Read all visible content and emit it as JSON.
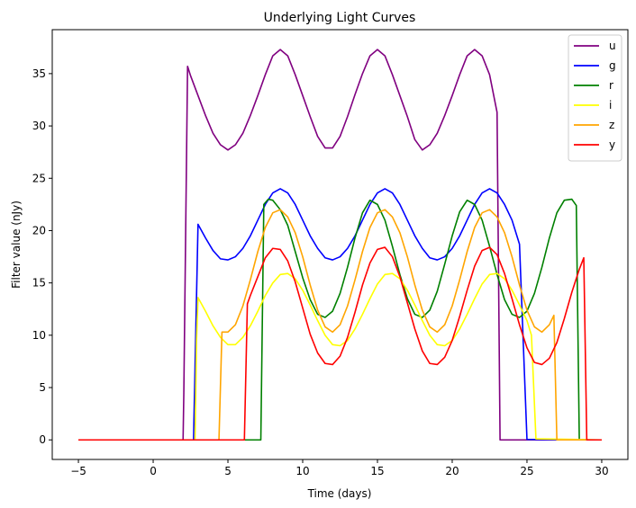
{
  "chart_data": {
    "type": "line",
    "title": "Underlying Light Curves",
    "xlabel": "Time (days)",
    "ylabel": "Filter value (nJy)",
    "xlim": [
      -6.75,
      31.75
    ],
    "ylim": [
      -1.87,
      39.2
    ],
    "xticks": [
      -5,
      0,
      5,
      10,
      15,
      20,
      25,
      30
    ],
    "yticks": [
      0,
      5,
      10,
      15,
      20,
      25,
      30,
      35
    ],
    "grid": false,
    "legend_position": "top-right",
    "series": [
      {
        "name": "u",
        "color": "#800080",
        "points": [
          [
            -5,
            0
          ],
          [
            2.0,
            0
          ],
          [
            2.05,
            4.5
          ],
          [
            2.3,
            35.7
          ],
          [
            2.5,
            34.8
          ],
          [
            3.0,
            32.9
          ],
          [
            3.5,
            31.0
          ],
          [
            4.0,
            29.3
          ],
          [
            4.5,
            28.2
          ],
          [
            5.0,
            27.7
          ],
          [
            5.5,
            28.2
          ],
          [
            6.0,
            29.3
          ],
          [
            6.5,
            31.0
          ],
          [
            7.0,
            32.9
          ],
          [
            7.5,
            34.9
          ],
          [
            8.0,
            36.7
          ],
          [
            8.5,
            37.3
          ],
          [
            9.0,
            36.7
          ],
          [
            9.5,
            34.9
          ],
          [
            10.0,
            32.9
          ],
          [
            10.5,
            30.9
          ],
          [
            11.0,
            29.0
          ],
          [
            11.5,
            27.9
          ],
          [
            12.0,
            27.9
          ],
          [
            12.5,
            29.0
          ],
          [
            13.0,
            30.9
          ],
          [
            13.5,
            33.0
          ],
          [
            14.0,
            35.0
          ],
          [
            14.5,
            36.7
          ],
          [
            15.0,
            37.3
          ],
          [
            15.5,
            36.7
          ],
          [
            16.0,
            34.9
          ],
          [
            16.5,
            32.9
          ],
          [
            17.0,
            30.9
          ],
          [
            17.5,
            28.7
          ],
          [
            18.0,
            27.7
          ],
          [
            18.5,
            28.2
          ],
          [
            19.0,
            29.3
          ],
          [
            19.5,
            31.0
          ],
          [
            20.0,
            32.9
          ],
          [
            20.5,
            34.9
          ],
          [
            21.0,
            36.7
          ],
          [
            21.5,
            37.3
          ],
          [
            22.0,
            36.7
          ],
          [
            22.5,
            34.9
          ],
          [
            23.0,
            31.3
          ],
          [
            23.2,
            0
          ],
          [
            30,
            0
          ]
        ]
      },
      {
        "name": "g",
        "color": "#0000ff",
        "points": [
          [
            -5,
            0
          ],
          [
            2.7,
            0
          ],
          [
            3.0,
            20.6
          ],
          [
            3.5,
            19.3
          ],
          [
            4.0,
            18.1
          ],
          [
            4.5,
            17.3
          ],
          [
            5.0,
            17.2
          ],
          [
            5.5,
            17.5
          ],
          [
            6.0,
            18.3
          ],
          [
            6.5,
            19.5
          ],
          [
            7.0,
            21.0
          ],
          [
            7.5,
            22.5
          ],
          [
            8.0,
            23.6
          ],
          [
            8.5,
            24.0
          ],
          [
            9.0,
            23.6
          ],
          [
            9.5,
            22.5
          ],
          [
            10.0,
            21.0
          ],
          [
            10.5,
            19.5
          ],
          [
            11.0,
            18.3
          ],
          [
            11.5,
            17.4
          ],
          [
            12.0,
            17.2
          ],
          [
            12.5,
            17.5
          ],
          [
            13.0,
            18.3
          ],
          [
            13.5,
            19.5
          ],
          [
            14.0,
            21.0
          ],
          [
            14.5,
            22.5
          ],
          [
            15.0,
            23.6
          ],
          [
            15.5,
            24.0
          ],
          [
            16.0,
            23.6
          ],
          [
            16.5,
            22.5
          ],
          [
            17.0,
            21.0
          ],
          [
            17.5,
            19.5
          ],
          [
            18.0,
            18.3
          ],
          [
            18.5,
            17.4
          ],
          [
            19.0,
            17.2
          ],
          [
            19.5,
            17.5
          ],
          [
            20.0,
            18.3
          ],
          [
            20.5,
            19.5
          ],
          [
            21.0,
            21.0
          ],
          [
            21.5,
            22.5
          ],
          [
            22.0,
            23.6
          ],
          [
            22.5,
            24.0
          ],
          [
            23.0,
            23.6
          ],
          [
            23.5,
            22.5
          ],
          [
            24.0,
            21.0
          ],
          [
            24.5,
            18.7
          ],
          [
            25.0,
            0.05
          ],
          [
            30,
            0
          ]
        ]
      },
      {
        "name": "r",
        "color": "#008000",
        "points": [
          [
            -5,
            0
          ],
          [
            7.2,
            0
          ],
          [
            7.4,
            22.5
          ],
          [
            7.7,
            23.0
          ],
          [
            8.0,
            22.9
          ],
          [
            8.5,
            22.0
          ],
          [
            9.0,
            20.5
          ],
          [
            9.5,
            18.0
          ],
          [
            10.0,
            15.5
          ],
          [
            10.5,
            13.4
          ],
          [
            11.0,
            12.0
          ],
          [
            11.5,
            11.7
          ],
          [
            12.0,
            12.3
          ],
          [
            12.5,
            14.0
          ],
          [
            13.0,
            16.5
          ],
          [
            13.5,
            19.3
          ],
          [
            14.0,
            21.7
          ],
          [
            14.5,
            22.9
          ],
          [
            15.0,
            22.5
          ],
          [
            15.5,
            21.0
          ],
          [
            16.0,
            18.5
          ],
          [
            16.5,
            15.8
          ],
          [
            17.0,
            13.5
          ],
          [
            17.5,
            12.0
          ],
          [
            18.0,
            11.7
          ],
          [
            18.5,
            12.4
          ],
          [
            19.0,
            14.2
          ],
          [
            19.5,
            16.8
          ],
          [
            20.0,
            19.5
          ],
          [
            20.5,
            21.8
          ],
          [
            21.0,
            22.9
          ],
          [
            21.5,
            22.5
          ],
          [
            22.0,
            21.0
          ],
          [
            22.5,
            18.5
          ],
          [
            23.0,
            15.8
          ],
          [
            23.5,
            13.4
          ],
          [
            24.0,
            12.0
          ],
          [
            24.5,
            11.7
          ],
          [
            25.0,
            12.3
          ],
          [
            25.5,
            14.0
          ],
          [
            26.0,
            16.5
          ],
          [
            26.5,
            19.3
          ],
          [
            27.0,
            21.7
          ],
          [
            27.5,
            22.9
          ],
          [
            28.0,
            23.0
          ],
          [
            28.3,
            22.4
          ],
          [
            28.5,
            0
          ],
          [
            30,
            0
          ]
        ]
      },
      {
        "name": "i",
        "color": "#ffff00",
        "points": [
          [
            -5,
            0
          ],
          [
            2.8,
            0
          ],
          [
            2.9,
            9.5
          ],
          [
            3.0,
            13.6
          ],
          [
            3.5,
            12.3
          ],
          [
            4.0,
            10.9
          ],
          [
            4.5,
            9.8
          ],
          [
            5.0,
            9.1
          ],
          [
            5.5,
            9.1
          ],
          [
            6.0,
            9.8
          ],
          [
            6.5,
            10.9
          ],
          [
            7.0,
            12.3
          ],
          [
            7.5,
            13.8
          ],
          [
            8.0,
            15.0
          ],
          [
            8.5,
            15.8
          ],
          [
            9.0,
            15.9
          ],
          [
            9.5,
            15.4
          ],
          [
            10.0,
            14.3
          ],
          [
            10.5,
            12.9
          ],
          [
            11.0,
            11.4
          ],
          [
            11.5,
            10.0
          ],
          [
            12.0,
            9.1
          ],
          [
            12.5,
            9.0
          ],
          [
            13.0,
            9.5
          ],
          [
            13.5,
            10.6
          ],
          [
            14.0,
            12.0
          ],
          [
            14.5,
            13.5
          ],
          [
            15.0,
            14.9
          ],
          [
            15.5,
            15.8
          ],
          [
            16.0,
            15.9
          ],
          [
            16.5,
            15.4
          ],
          [
            17.0,
            14.3
          ],
          [
            17.5,
            12.9
          ],
          [
            18.0,
            11.4
          ],
          [
            18.5,
            10.0
          ],
          [
            19.0,
            9.1
          ],
          [
            19.5,
            9.0
          ],
          [
            20.0,
            9.5
          ],
          [
            20.5,
            10.6
          ],
          [
            21.0,
            12.0
          ],
          [
            21.5,
            13.5
          ],
          [
            22.0,
            14.9
          ],
          [
            22.5,
            15.8
          ],
          [
            23.0,
            15.9
          ],
          [
            23.5,
            15.4
          ],
          [
            24.0,
            14.3
          ],
          [
            24.5,
            12.9
          ],
          [
            25.0,
            11.4
          ],
          [
            25.3,
            10.0
          ],
          [
            25.6,
            0.1
          ],
          [
            30,
            0
          ]
        ]
      },
      {
        "name": "z",
        "color": "#ffa500",
        "points": [
          [
            -5,
            0
          ],
          [
            4.4,
            0
          ],
          [
            4.6,
            10.3
          ],
          [
            5.0,
            10.3
          ],
          [
            5.5,
            11.0
          ],
          [
            6.0,
            12.8
          ],
          [
            6.5,
            15.3
          ],
          [
            7.0,
            18.0
          ],
          [
            7.5,
            20.3
          ],
          [
            8.0,
            21.7
          ],
          [
            8.5,
            22.0
          ],
          [
            9.0,
            21.3
          ],
          [
            9.5,
            19.8
          ],
          [
            10.0,
            17.5
          ],
          [
            10.5,
            14.8
          ],
          [
            11.0,
            12.4
          ],
          [
            11.5,
            10.8
          ],
          [
            12.0,
            10.3
          ],
          [
            12.5,
            11.0
          ],
          [
            13.0,
            12.8
          ],
          [
            13.5,
            15.3
          ],
          [
            14.0,
            18.0
          ],
          [
            14.5,
            20.3
          ],
          [
            15.0,
            21.7
          ],
          [
            15.5,
            22.0
          ],
          [
            16.0,
            21.3
          ],
          [
            16.5,
            19.8
          ],
          [
            17.0,
            17.5
          ],
          [
            17.5,
            14.8
          ],
          [
            18.0,
            12.4
          ],
          [
            18.5,
            10.8
          ],
          [
            19.0,
            10.3
          ],
          [
            19.5,
            11.0
          ],
          [
            20.0,
            12.8
          ],
          [
            20.5,
            15.3
          ],
          [
            21.0,
            18.0
          ],
          [
            21.5,
            20.3
          ],
          [
            22.0,
            21.7
          ],
          [
            22.5,
            22.0
          ],
          [
            23.0,
            21.3
          ],
          [
            23.5,
            19.8
          ],
          [
            24.0,
            17.5
          ],
          [
            24.5,
            14.8
          ],
          [
            25.0,
            12.4
          ],
          [
            25.5,
            10.8
          ],
          [
            26.0,
            10.3
          ],
          [
            26.5,
            11.0
          ],
          [
            26.8,
            11.9
          ],
          [
            27.0,
            0
          ],
          [
            30,
            0
          ]
        ]
      },
      {
        "name": "y",
        "color": "#ff0000",
        "points": [
          [
            -5,
            0
          ],
          [
            6.1,
            0
          ],
          [
            6.3,
            13.0
          ],
          [
            6.5,
            13.8
          ],
          [
            7.0,
            15.6
          ],
          [
            7.5,
            17.4
          ],
          [
            8.0,
            18.3
          ],
          [
            8.5,
            18.2
          ],
          [
            9.0,
            17.1
          ],
          [
            9.5,
            15.1
          ],
          [
            10.0,
            12.6
          ],
          [
            10.5,
            10.1
          ],
          [
            11.0,
            8.3
          ],
          [
            11.5,
            7.3
          ],
          [
            12.0,
            7.2
          ],
          [
            12.5,
            8.0
          ],
          [
            13.0,
            9.8
          ],
          [
            13.5,
            12.2
          ],
          [
            14.0,
            14.8
          ],
          [
            14.5,
            16.9
          ],
          [
            15.0,
            18.2
          ],
          [
            15.5,
            18.4
          ],
          [
            16.0,
            17.5
          ],
          [
            16.5,
            15.6
          ],
          [
            17.0,
            13.1
          ],
          [
            17.5,
            10.6
          ],
          [
            18.0,
            8.5
          ],
          [
            18.5,
            7.3
          ],
          [
            19.0,
            7.2
          ],
          [
            19.5,
            7.9
          ],
          [
            20.0,
            9.5
          ],
          [
            20.5,
            11.8
          ],
          [
            21.0,
            14.3
          ],
          [
            21.5,
            16.6
          ],
          [
            22.0,
            18.1
          ],
          [
            22.5,
            18.4
          ],
          [
            23.0,
            17.7
          ],
          [
            23.5,
            15.9
          ],
          [
            24.0,
            13.5
          ],
          [
            24.5,
            11.0
          ],
          [
            25.0,
            8.8
          ],
          [
            25.5,
            7.4
          ],
          [
            26.0,
            7.2
          ],
          [
            26.5,
            7.8
          ],
          [
            27.0,
            9.3
          ],
          [
            27.5,
            11.6
          ],
          [
            28.0,
            14.1
          ],
          [
            28.5,
            16.3
          ],
          [
            28.8,
            17.4
          ],
          [
            29.0,
            0
          ],
          [
            30,
            0
          ]
        ]
      }
    ]
  }
}
